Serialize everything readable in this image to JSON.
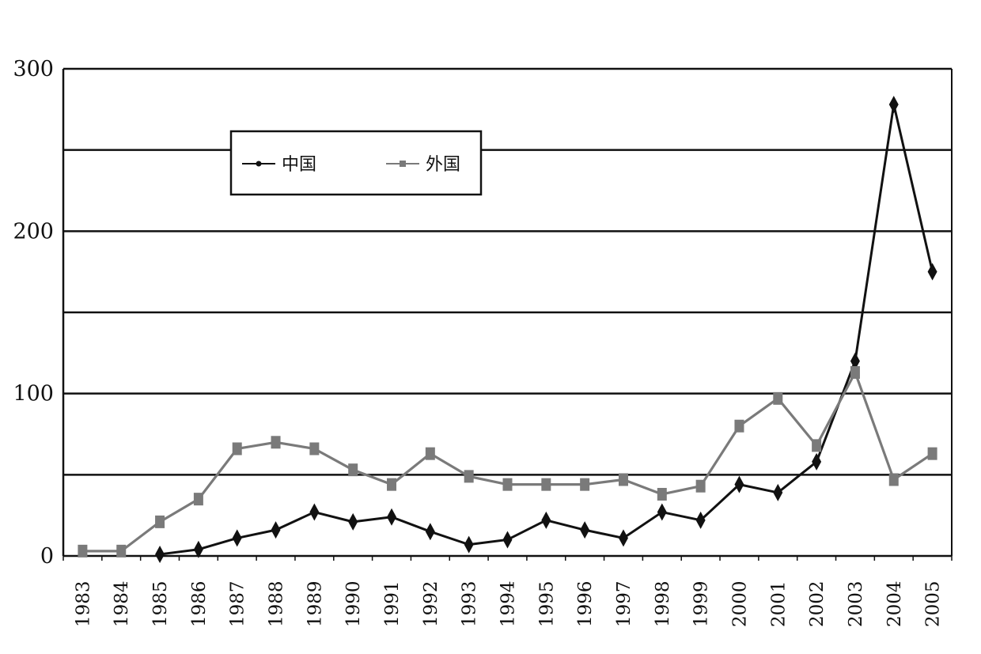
{
  "chart_data": {
    "type": "line",
    "title": "",
    "xlabel": "",
    "ylabel": "",
    "ylim": [
      0,
      300
    ],
    "y_ticks": [
      0,
      100,
      200,
      300
    ],
    "grid": "horizontal",
    "legend_position": "top-left",
    "categories": [
      "1983",
      "1984",
      "1985",
      "1986",
      "1987",
      "1988",
      "1989",
      "1990",
      "1991",
      "1992",
      "1993",
      "1994",
      "1995",
      "1996",
      "1997",
      "1998",
      "1999",
      "2000",
      "2001",
      "2002",
      "2003",
      "2004",
      "2005"
    ],
    "series": [
      {
        "name": "中国",
        "color": "#111111",
        "marker": "diamond",
        "values": [
          null,
          null,
          1,
          4,
          11,
          16,
          27,
          21,
          24,
          15,
          7,
          10,
          22,
          16,
          11,
          27,
          22,
          44,
          39,
          58,
          120,
          278,
          175
        ]
      },
      {
        "name": "外国",
        "color": "#7a7a7a",
        "marker": "square",
        "values": [
          3,
          3,
          21,
          35,
          66,
          70,
          66,
          53,
          44,
          63,
          49,
          44,
          44,
          44,
          47,
          38,
          43,
          80,
          97,
          68,
          113,
          47,
          63
        ]
      }
    ]
  }
}
